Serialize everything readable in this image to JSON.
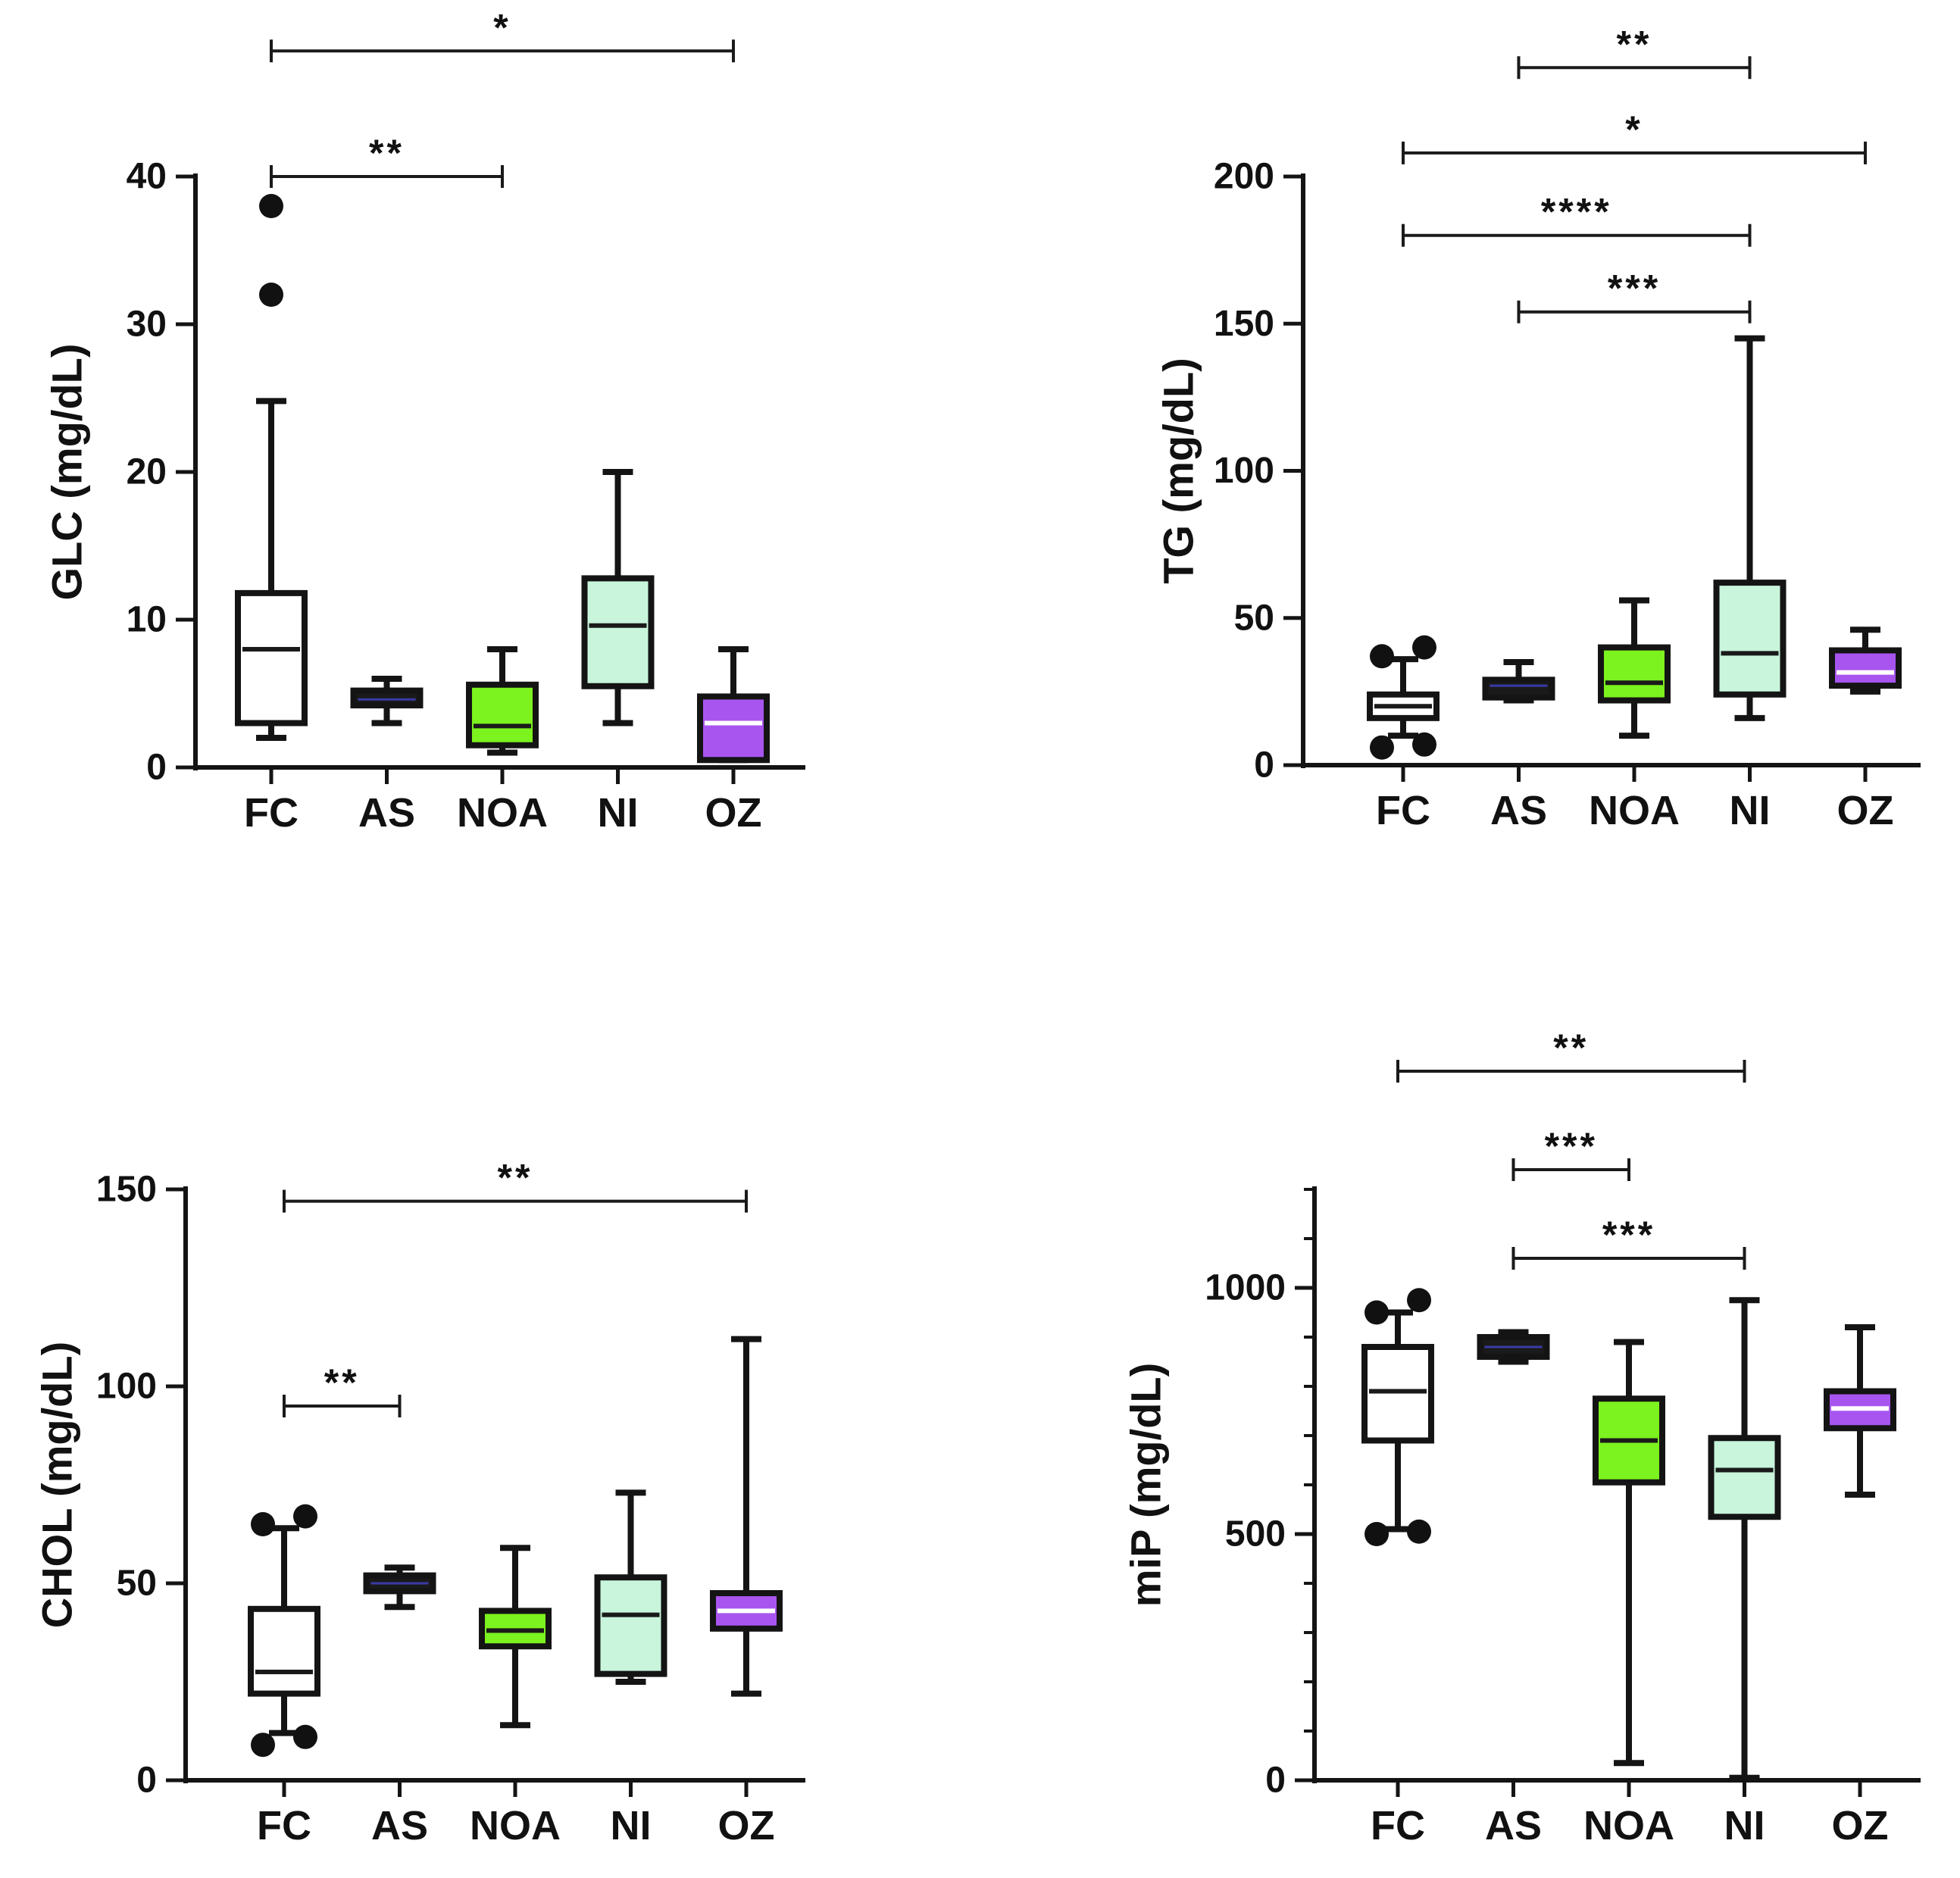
{
  "figure": {
    "panel_count": 4
  },
  "colors": {
    "FC": "#ffffff",
    "AS": "#1a1a1a",
    "NOA": "#7cf21e",
    "NI": "#c8f5dc",
    "OZ": "#a855f0",
    "stroke": "#141414",
    "outlier": "#111111",
    "bar": "#1a1a1a",
    "median_light": "#ffffff",
    "median_dark": "#1a1a1a"
  },
  "chart_data": [
    {
      "type": "box",
      "ylabel": "GLC (mg/dL)",
      "ylim": [
        0,
        40
      ],
      "yticks": [
        0,
        10,
        20,
        30,
        40
      ],
      "minor_ticks": [],
      "categories": [
        "FC",
        "AS",
        "NOA",
        "NI",
        "OZ"
      ],
      "boxes": [
        {
          "group": "FC",
          "min": 2,
          "q1": 3,
          "median": 8,
          "q3": 11.8,
          "max": 24.8,
          "outliers": [
            32,
            38
          ]
        },
        {
          "group": "AS",
          "min": 3,
          "q1": 4.2,
          "median": 4.6,
          "q3": 5.2,
          "max": 6,
          "outliers": []
        },
        {
          "group": "NOA",
          "min": 1,
          "q1": 1.5,
          "median": 2.8,
          "q3": 5.6,
          "max": 8,
          "outliers": []
        },
        {
          "group": "NI",
          "min": 3,
          "q1": 5.5,
          "median": 9.6,
          "q3": 12.8,
          "max": 20,
          "outliers": []
        },
        {
          "group": "OZ",
          "min": 0.5,
          "q1": 0.5,
          "median": 3,
          "q3": 4.8,
          "max": 8,
          "outliers": []
        }
      ],
      "brackets": [
        {
          "from": "FC",
          "to": "OZ",
          "value": 48.5,
          "label": "*"
        },
        {
          "from": "FC",
          "to": "NOA",
          "value": 40,
          "label": "**"
        }
      ]
    },
    {
      "type": "box",
      "ylabel": "TG (mg/dL)",
      "ylim": [
        0,
        200
      ],
      "yticks": [
        0,
        50,
        100,
        150,
        200
      ],
      "minor_ticks": [],
      "categories": [
        "FC",
        "AS",
        "NOA",
        "NI",
        "OZ"
      ],
      "boxes": [
        {
          "group": "FC",
          "min": 10,
          "q1": 16,
          "median": 20,
          "q3": 24,
          "max": 36,
          "outliers": [
            6,
            7,
            37,
            40
          ]
        },
        {
          "group": "AS",
          "min": 22,
          "q1": 23,
          "median": 27,
          "q3": 29,
          "max": 35,
          "outliers": []
        },
        {
          "group": "NOA",
          "min": 10,
          "q1": 22,
          "median": 28,
          "q3": 40,
          "max": 56,
          "outliers": []
        },
        {
          "group": "NI",
          "min": 16,
          "q1": 24,
          "median": 38,
          "q3": 62,
          "max": 145,
          "outliers": []
        },
        {
          "group": "OZ",
          "min": 25,
          "q1": 27,
          "median": 31.5,
          "q3": 39,
          "max": 46,
          "outliers": []
        }
      ],
      "brackets": [
        {
          "from": "AS",
          "to": "NI",
          "value": 237,
          "label": "**"
        },
        {
          "from": "FC",
          "to": "OZ",
          "value": 208,
          "label": "*"
        },
        {
          "from": "FC",
          "to": "NI",
          "value": 180,
          "label": "****"
        },
        {
          "from": "AS",
          "to": "NI",
          "value": 154,
          "label": "***"
        }
      ]
    },
    {
      "type": "box",
      "ylabel": "CHOL (mg/dL)",
      "ylim": [
        0,
        150
      ],
      "yticks": [
        0,
        50,
        100,
        150
      ],
      "minor_ticks": [],
      "categories": [
        "FC",
        "AS",
        "NOA",
        "NI",
        "OZ"
      ],
      "boxes": [
        {
          "group": "FC",
          "min": 12,
          "q1": 22,
          "median": 27.5,
          "q3": 43.5,
          "max": 64,
          "outliers": [
            9,
            11,
            65,
            67
          ]
        },
        {
          "group": "AS",
          "min": 44,
          "q1": 48,
          "median": 50,
          "q3": 52,
          "max": 54,
          "outliers": []
        },
        {
          "group": "NOA",
          "min": 14,
          "q1": 34,
          "median": 38,
          "q3": 43,
          "max": 59,
          "outliers": []
        },
        {
          "group": "NI",
          "min": 25,
          "q1": 27,
          "median": 42,
          "q3": 51.5,
          "max": 73,
          "outliers": []
        },
        {
          "group": "OZ",
          "min": 22,
          "q1": 38.5,
          "median": 43,
          "q3": 47.5,
          "max": 112,
          "outliers": []
        }
      ],
      "brackets": [
        {
          "from": "FC",
          "to": "OZ",
          "value": 147,
          "label": "**"
        },
        {
          "from": "FC",
          "to": "AS",
          "value": 95,
          "label": "**"
        }
      ]
    },
    {
      "type": "box",
      "ylabel": "miP (mg/dL)",
      "ylim": [
        0,
        1200
      ],
      "yticks": [
        0,
        500,
        1000
      ],
      "minor_ticks": [
        100,
        200,
        300,
        400,
        600,
        700,
        800,
        900,
        1100,
        1200
      ],
      "categories": [
        "FC",
        "AS",
        "NOA",
        "NI",
        "OZ"
      ],
      "boxes": [
        {
          "group": "FC",
          "min": 510,
          "q1": 690,
          "median": 790,
          "q3": 880,
          "max": 950,
          "outliers": [
            500,
            505,
            950,
            975
          ]
        },
        {
          "group": "AS",
          "min": 850,
          "q1": 860,
          "median": 880,
          "q3": 900,
          "max": 910,
          "outliers": []
        },
        {
          "group": "NOA",
          "min": 35,
          "q1": 605,
          "median": 690,
          "q3": 775,
          "max": 890,
          "outliers": []
        },
        {
          "group": "NI",
          "min": 5,
          "q1": 535,
          "median": 630,
          "q3": 695,
          "max": 975,
          "outliers": []
        },
        {
          "group": "OZ",
          "min": 580,
          "q1": 715,
          "median": 755,
          "q3": 790,
          "max": 920,
          "outliers": []
        }
      ],
      "brackets": [
        {
          "from": "FC",
          "to": "NI",
          "value": 1440,
          "label": "**"
        },
        {
          "from": "AS",
          "to": "NOA",
          "value": 1240,
          "label": "***"
        },
        {
          "from": "AS",
          "to": "NI",
          "value": 1060,
          "label": "***"
        }
      ]
    }
  ]
}
